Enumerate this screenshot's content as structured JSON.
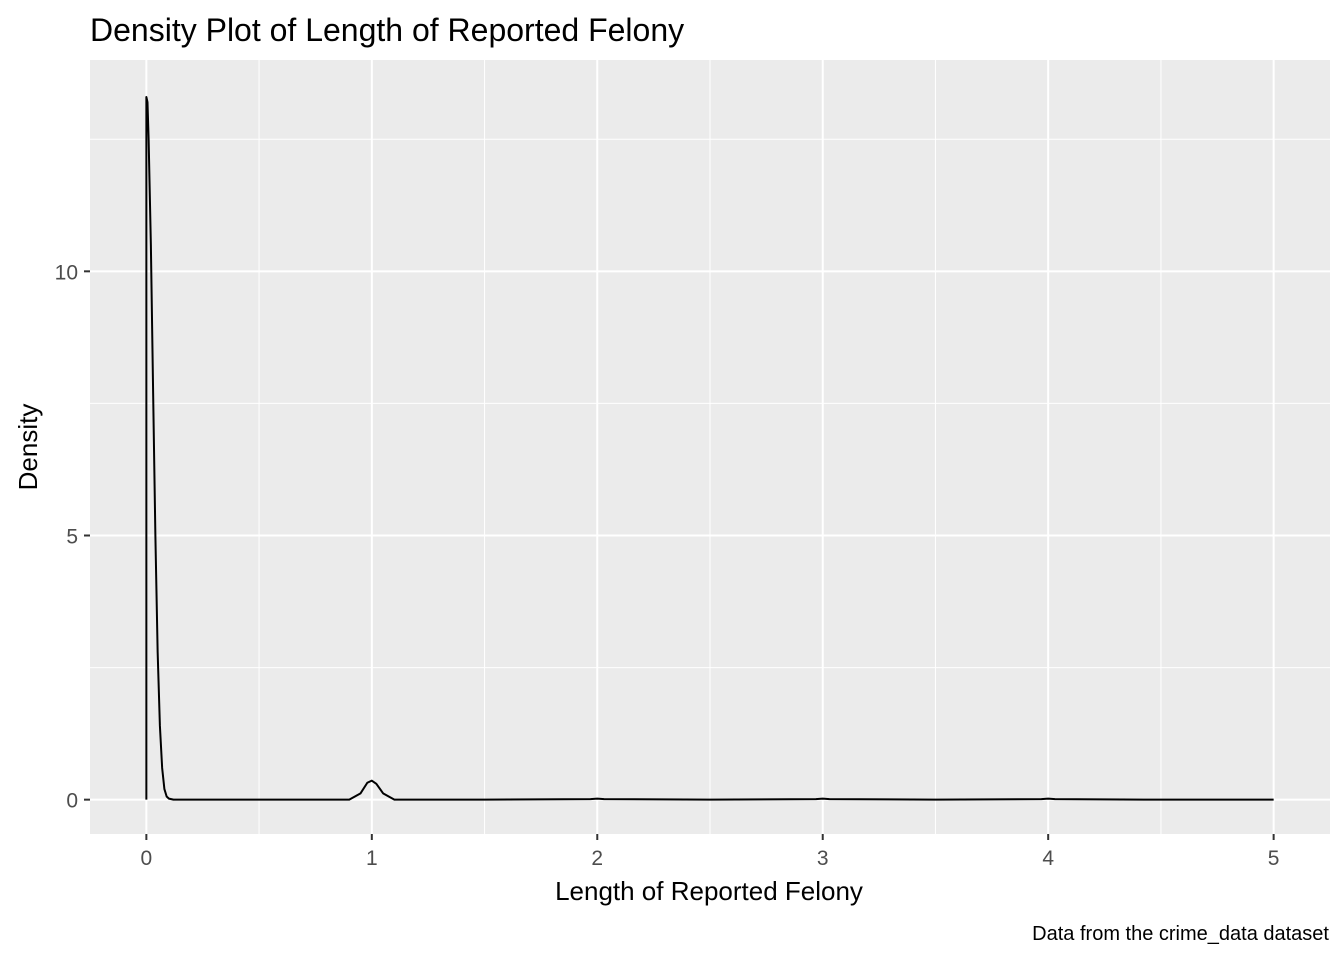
{
  "chart_data": {
    "type": "line",
    "title": "Density Plot of Length of Reported Felony",
    "xlabel": "Length of Reported Felony",
    "ylabel": "Density",
    "caption": "Data from the crime_data dataset",
    "xlim": [
      -0.25,
      5.25
    ],
    "ylim": [
      -0.65,
      14.0
    ],
    "x_ticks": [
      0,
      1,
      2,
      3,
      4,
      5
    ],
    "x_tick_labels": [
      "0",
      "1",
      "2",
      "3",
      "4",
      "5"
    ],
    "y_ticks": [
      0,
      5,
      10
    ],
    "y_tick_labels": [
      "0",
      "5",
      "10"
    ],
    "x_minor_ticks": [
      0.5,
      1.5,
      2.5,
      3.5,
      4.5
    ],
    "y_minor_ticks": [
      2.5,
      7.5,
      12.5
    ],
    "grid": true,
    "panel_background": "#ebebeb",
    "gridline_color": "#ffffff",
    "line_color": "#000000",
    "series": [
      {
        "x": [
          0,
          0,
          0.005,
          0.01,
          0.02,
          0.03,
          0.04,
          0.05,
          0.06,
          0.07,
          0.08,
          0.09,
          0.1,
          0.12,
          0.15,
          0.3,
          0.6,
          0.9,
          0.95,
          0.98,
          1.0,
          1.02,
          1.05,
          1.1,
          1.5,
          1.97,
          2.0,
          2.03,
          2.5,
          2.97,
          3.0,
          3.03,
          3.5,
          3.97,
          4.0,
          4.03,
          4.5,
          5.0,
          5.0
        ],
        "y": [
          0,
          13.3,
          13.2,
          12.5,
          10.5,
          7.7,
          5.0,
          2.8,
          1.4,
          0.6,
          0.2,
          0.06,
          0.02,
          0.0,
          0.0,
          0.0,
          0.0,
          0.0,
          0.12,
          0.32,
          0.36,
          0.3,
          0.12,
          0.0,
          0.0,
          0.01,
          0.02,
          0.01,
          0.0,
          0.01,
          0.02,
          0.01,
          0.0,
          0.01,
          0.02,
          0.01,
          0.0,
          0.0,
          0
        ]
      }
    ]
  }
}
